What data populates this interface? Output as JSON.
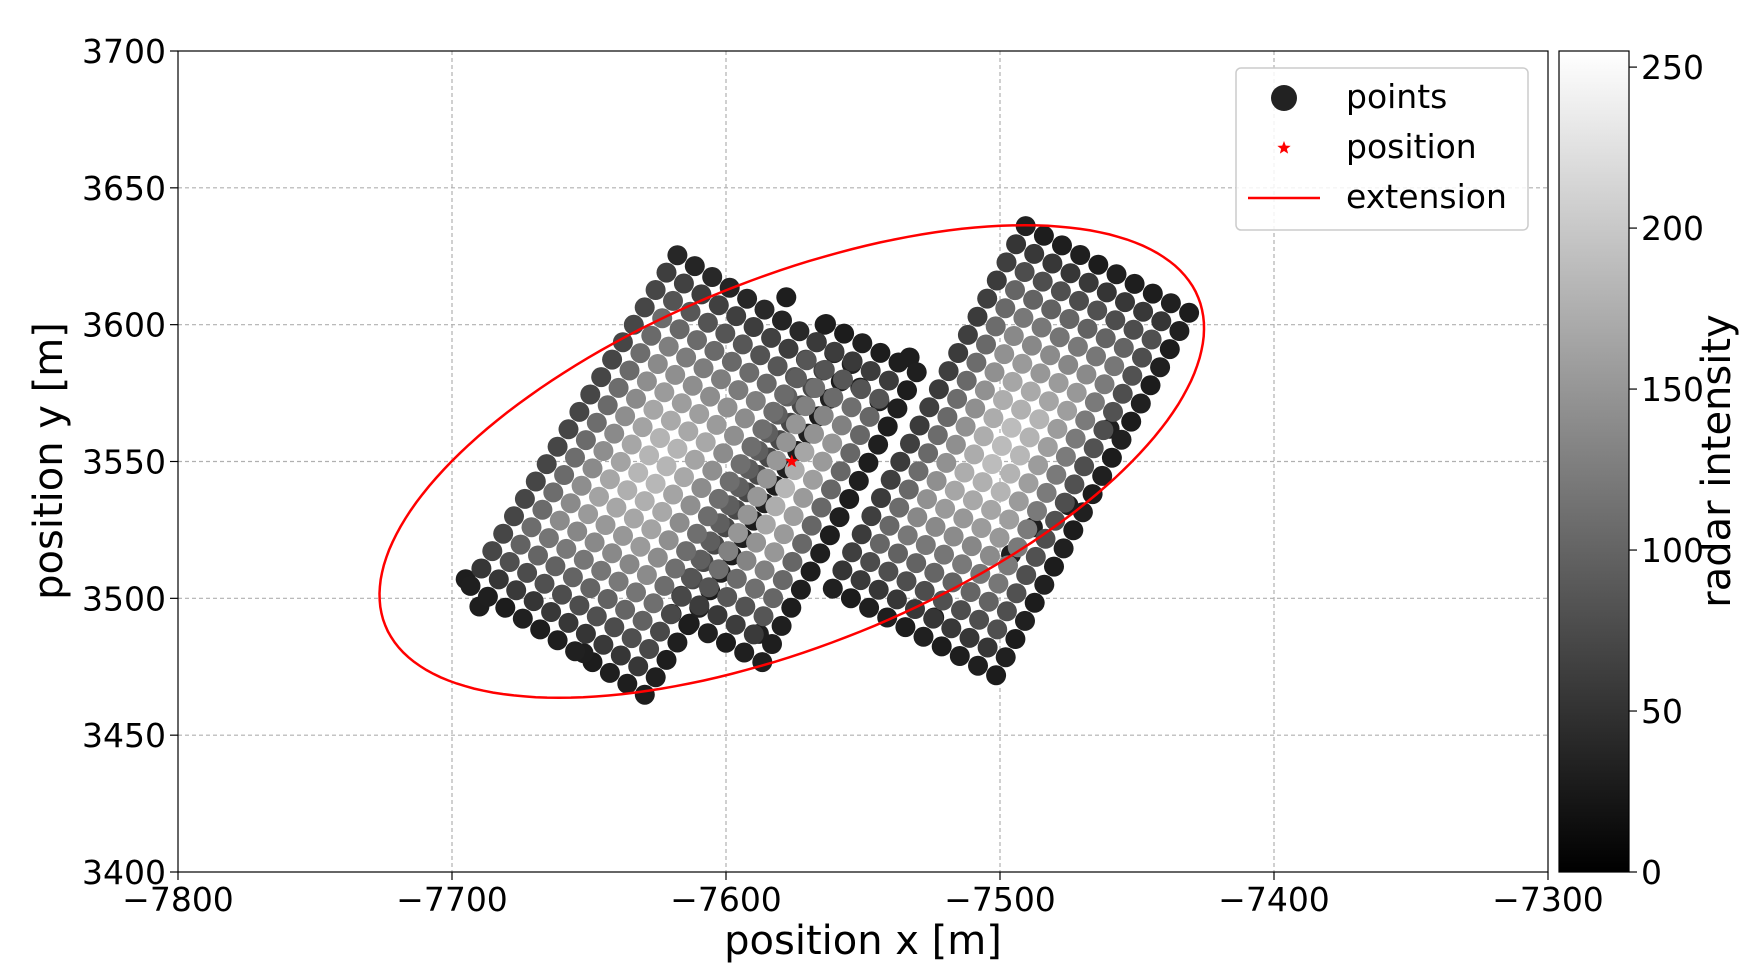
{
  "chart_data": {
    "type": "scatter",
    "xlabel": "position x [m]",
    "ylabel": "position y [m]",
    "xlim": [
      -7800,
      -7300
    ],
    "ylim": [
      3400,
      3700
    ],
    "xticks": [
      -7800,
      -7700,
      -7600,
      -7500,
      -7400,
      -7300
    ],
    "xtick_labels": [
      "−7800",
      "−7700",
      "−7600",
      "−7500",
      "−7400",
      "−7300"
    ],
    "yticks": [
      3400,
      3450,
      3500,
      3550,
      3600,
      3650,
      3700
    ],
    "ytick_labels": [
      "3400",
      "3450",
      "3500",
      "3550",
      "3600",
      "3650",
      "3700"
    ],
    "grid": true,
    "legend": {
      "placement": "top-right",
      "entries": [
        {
          "label": "points",
          "marker": "circle",
          "color": "#222222"
        },
        {
          "label": "position",
          "marker": "star",
          "color": "#ff0000"
        },
        {
          "label": "extension",
          "marker": "line",
          "color": "#ff0000"
        }
      ]
    },
    "colorbar": {
      "label": "radar intensity",
      "range": [
        0,
        255
      ],
      "ticks": [
        0,
        50,
        100,
        150,
        200,
        250
      ],
      "tick_labels": [
        "0",
        "50",
        "100",
        "150",
        "200",
        "250"
      ],
      "colormap": "gray"
    },
    "position": {
      "x": -7576,
      "y": 3550,
      "color": "#ff0000"
    },
    "extension": {
      "center": [
        -7576,
        3550
      ],
      "semi_major": 160,
      "semi_minor": 67,
      "angle_deg": 22,
      "color": "#ff0000"
    },
    "points": {
      "clusters": [
        {
          "center": [
            -7626,
            3548
          ],
          "length": 145,
          "width": 82,
          "angle_deg": 58,
          "peak": 155
        },
        {
          "center": [
            -7578,
            3540
          ],
          "length": 120,
          "width": 44,
          "angle_deg": 62,
          "peak": 150
        },
        {
          "center": [
            -7498,
            3555
          ],
          "length": 150,
          "width": 72,
          "angle_deg": 62,
          "peak": 160
        }
      ],
      "spacing": 7.5,
      "outliers": [
        [
          -7652,
          3480
        ],
        [
          -7695,
          3507
        ],
        [
          -7690,
          3497
        ],
        [
          -7588,
          3487
        ],
        [
          -7533,
          3588
        ],
        [
          -7524,
          3493
        ],
        [
          -7496,
          3516
        ],
        [
          -7488,
          3526
        ],
        [
          -7460,
          3562
        ],
        [
          -7475,
          3534
        ],
        [
          -7578,
          3610
        ],
        [
          -7564,
          3600
        ],
        [
          -7551,
          3577
        ],
        [
          -7544,
          3572
        ]
      ],
      "marker_size": 10
    }
  }
}
